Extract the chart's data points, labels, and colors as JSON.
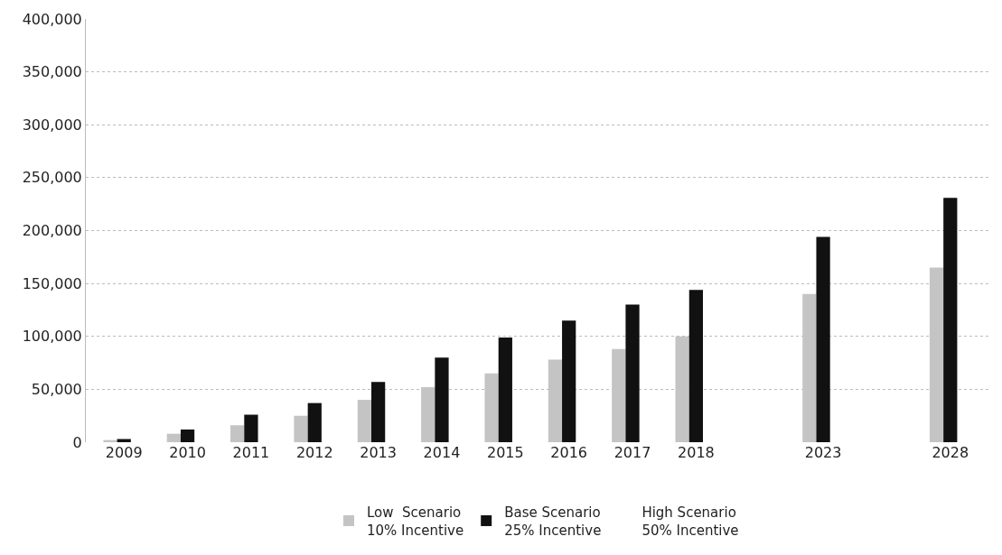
{
  "chart_data": {
    "type": "bar",
    "categories": [
      "2009",
      "2010",
      "2011",
      "2012",
      "2013",
      "2014",
      "2015",
      "2016",
      "2017",
      "2018",
      null,
      "2023",
      null,
      "2028"
    ],
    "series": [
      {
        "name": "Low  Scenario\n10% Incentive",
        "color": "#c4c4c4",
        "values": [
          2000,
          8000,
          16000,
          25000,
          40000,
          52000,
          65000,
          78000,
          88000,
          100000,
          0,
          140000,
          0,
          165000
        ]
      },
      {
        "name": "Base Scenario\n25% Incentive",
        "color": "#111111",
        "values": [
          3000,
          12000,
          26000,
          37000,
          57000,
          80000,
          99000,
          115000,
          130000,
          144000,
          0,
          194000,
          0,
          231000
        ]
      },
      {
        "name": "High Scenario\n50% Incentive",
        "values": [
          null,
          null,
          null,
          null,
          null,
          null,
          null,
          null,
          null,
          null,
          null,
          null,
          null,
          null
        ]
      }
    ],
    "ylim": [
      0,
      400000
    ],
    "yticks": [
      {
        "value": 0,
        "label": "0"
      },
      {
        "value": 50000,
        "label": "50,000"
      },
      {
        "value": 100000,
        "label": "100,000"
      },
      {
        "value": 150000,
        "label": "150,000"
      },
      {
        "value": 200000,
        "label": "200,000"
      },
      {
        "value": 250000,
        "label": "250,000"
      },
      {
        "value": 300000,
        "label": "300,000"
      },
      {
        "value": 350000,
        "label": "350,000"
      },
      {
        "value": 400000,
        "label": "400,000"
      }
    ],
    "grid": "y",
    "legend": "bottom"
  }
}
